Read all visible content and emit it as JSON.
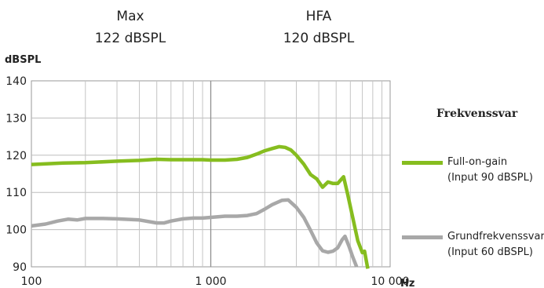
{
  "header": {
    "max_label": "Max",
    "max_value": "122 dBSPL",
    "hfa_label": "HFA",
    "hfa_value": "120 dBSPL"
  },
  "legend": {
    "title": "Frekvenssvar",
    "items": [
      {
        "line1": "Full-on-gain",
        "line2": "(Input 90 dBSPL)",
        "color": "#86bd1f"
      },
      {
        "line1": "Grundfrekvenssvar",
        "line2": "(Input 60 dBSPL)",
        "color": "#a8a8a8"
      }
    ]
  },
  "chart_data": {
    "type": "line",
    "ylabel": "dBSPL",
    "xlabel": "Hz",
    "x_scale": "log",
    "xlim": [
      100,
      10000
    ],
    "ylim": [
      90,
      140
    ],
    "x_ticks": [
      100,
      1000,
      10000
    ],
    "x_tick_labels": [
      "100",
      "1 000",
      "10 000"
    ],
    "y_ticks": [
      90,
      100,
      110,
      120,
      130,
      140
    ],
    "y_tick_labels": [
      "90",
      "100",
      "110",
      "120",
      "130",
      "140"
    ],
    "grid": true,
    "series": [
      {
        "name": "Full-on-gain",
        "color": "#86bd1f",
        "points": [
          [
            100,
            117.5
          ],
          [
            150,
            117.9
          ],
          [
            200,
            118.0
          ],
          [
            300,
            118.4
          ],
          [
            400,
            118.6
          ],
          [
            500,
            118.9
          ],
          [
            600,
            118.8
          ],
          [
            700,
            118.8
          ],
          [
            800,
            118.8
          ],
          [
            900,
            118.8
          ],
          [
            1000,
            118.7
          ],
          [
            1200,
            118.7
          ],
          [
            1400,
            118.9
          ],
          [
            1600,
            119.4
          ],
          [
            1800,
            120.3
          ],
          [
            2000,
            121.2
          ],
          [
            2200,
            121.8
          ],
          [
            2400,
            122.3
          ],
          [
            2600,
            122.1
          ],
          [
            2800,
            121.4
          ],
          [
            3000,
            120.0
          ],
          [
            3300,
            117.6
          ],
          [
            3600,
            114.8
          ],
          [
            3900,
            113.6
          ],
          [
            4200,
            111.4
          ],
          [
            4500,
            112.8
          ],
          [
            4800,
            112.4
          ],
          [
            5100,
            112.4
          ],
          [
            5500,
            114.2
          ],
          [
            5800,
            109.5
          ],
          [
            6200,
            103.0
          ],
          [
            6600,
            97.0
          ],
          [
            7000,
            93.8
          ],
          [
            7200,
            94.2
          ],
          [
            7500,
            89.5
          ]
        ]
      },
      {
        "name": "Grundfrekvenssvar",
        "color": "#a8a8a8",
        "points": [
          [
            100,
            101.0
          ],
          [
            120,
            101.5
          ],
          [
            140,
            102.3
          ],
          [
            160,
            102.8
          ],
          [
            180,
            102.6
          ],
          [
            200,
            103.0
          ],
          [
            250,
            103.0
          ],
          [
            300,
            102.9
          ],
          [
            400,
            102.6
          ],
          [
            500,
            101.8
          ],
          [
            550,
            101.8
          ],
          [
            600,
            102.3
          ],
          [
            700,
            102.9
          ],
          [
            800,
            103.1
          ],
          [
            900,
            103.1
          ],
          [
            1000,
            103.3
          ],
          [
            1200,
            103.6
          ],
          [
            1400,
            103.6
          ],
          [
            1600,
            103.8
          ],
          [
            1800,
            104.3
          ],
          [
            2000,
            105.5
          ],
          [
            2200,
            106.7
          ],
          [
            2500,
            107.9
          ],
          [
            2700,
            108.0
          ],
          [
            3000,
            106.0
          ],
          [
            3300,
            103.3
          ],
          [
            3600,
            99.8
          ],
          [
            3900,
            96.4
          ],
          [
            4200,
            94.3
          ],
          [
            4500,
            93.9
          ],
          [
            4800,
            94.2
          ],
          [
            5100,
            95.1
          ],
          [
            5400,
            97.3
          ],
          [
            5600,
            98.2
          ],
          [
            5900,
            95.5
          ],
          [
            6200,
            92.5
          ],
          [
            6500,
            90.0
          ]
        ]
      }
    ]
  }
}
